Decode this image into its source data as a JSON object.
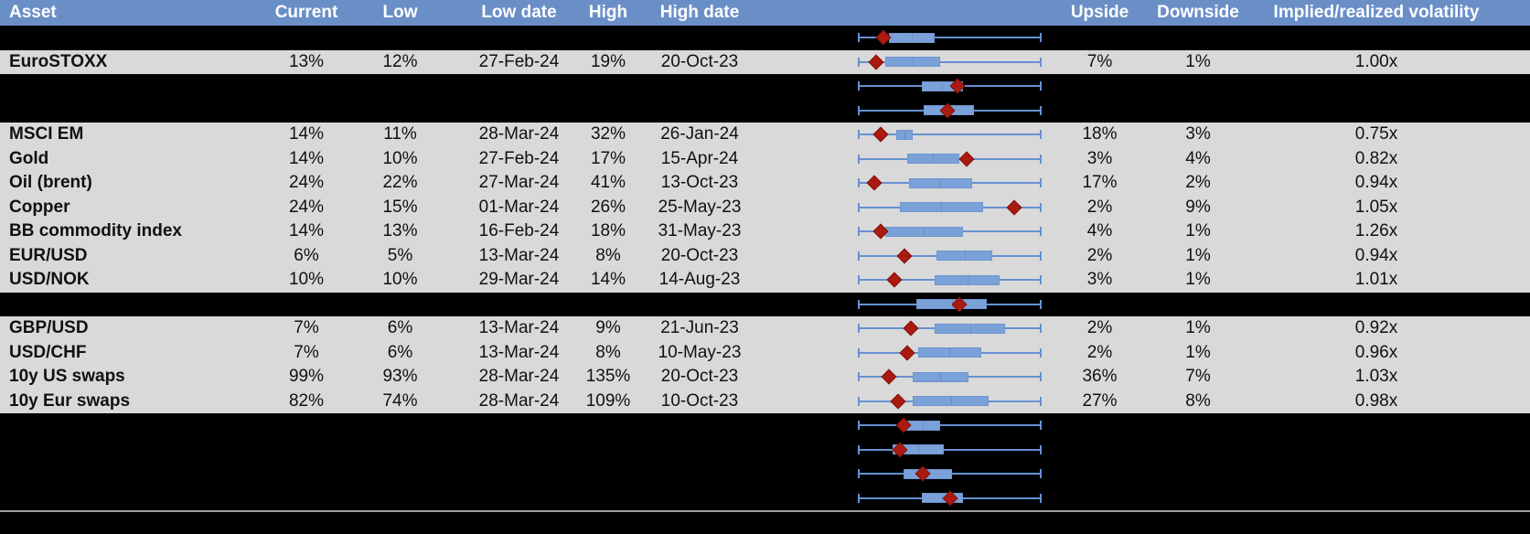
{
  "header": {
    "asset": "Asset",
    "current": "Current",
    "low": "Low",
    "low_date": "Low date",
    "high": "High",
    "high_date": "High date",
    "upside": "Upside",
    "downside": "Downside",
    "implied": "Implied/realized volatility"
  },
  "rows": [
    {
      "hidden": true
    },
    {
      "hidden": false,
      "asset": "EuroSTOXX",
      "current": "13%",
      "low": "12%",
      "low_date": "27-Feb-24",
      "high": "19%",
      "high_date": "20-Oct-23",
      "upside": "7%",
      "downside": "1%",
      "ratio": "1.00x"
    },
    {
      "hidden": true
    },
    {
      "hidden": true
    },
    {
      "hidden": false,
      "asset": "MSCI EM",
      "current": "14%",
      "low": "11%",
      "low_date": "28-Mar-24",
      "high": "32%",
      "high_date": "26-Jan-24",
      "upside": "18%",
      "downside": "3%",
      "ratio": "0.75x"
    },
    {
      "hidden": false,
      "asset": "Gold",
      "current": "14%",
      "low": "10%",
      "low_date": "27-Feb-24",
      "high": "17%",
      "high_date": "15-Apr-24",
      "upside": "3%",
      "downside": "4%",
      "ratio": "0.82x"
    },
    {
      "hidden": false,
      "asset": "Oil (brent)",
      "current": "24%",
      "low": "22%",
      "low_date": "27-Mar-24",
      "high": "41%",
      "high_date": "13-Oct-23",
      "upside": "17%",
      "downside": "2%",
      "ratio": "0.94x"
    },
    {
      "hidden": false,
      "asset": "Copper",
      "current": "24%",
      "low": "15%",
      "low_date": "01-Mar-24",
      "high": "26%",
      "high_date": "25-May-23",
      "upside": "2%",
      "downside": "9%",
      "ratio": "1.05x"
    },
    {
      "hidden": false,
      "asset": "BB commodity index",
      "current": "14%",
      "low": "13%",
      "low_date": "16-Feb-24",
      "high": "18%",
      "high_date": "31-May-23",
      "upside": "4%",
      "downside": "1%",
      "ratio": "1.26x"
    },
    {
      "hidden": false,
      "asset": "EUR/USD",
      "current": "6%",
      "low": "5%",
      "low_date": "13-Mar-24",
      "high": "8%",
      "high_date": "20-Oct-23",
      "upside": "2%",
      "downside": "1%",
      "ratio": "0.94x"
    },
    {
      "hidden": false,
      "asset": "USD/NOK",
      "current": "10%",
      "low": "10%",
      "low_date": "29-Mar-24",
      "high": "14%",
      "high_date": "14-Aug-23",
      "upside": "3%",
      "downside": "1%",
      "ratio": "1.01x"
    },
    {
      "hidden": true
    },
    {
      "hidden": false,
      "asset": "GBP/USD",
      "current": "7%",
      "low": "6%",
      "low_date": "13-Mar-24",
      "high": "9%",
      "high_date": "21-Jun-23",
      "upside": "2%",
      "downside": "1%",
      "ratio": "0.92x"
    },
    {
      "hidden": false,
      "asset": "USD/CHF",
      "current": "7%",
      "low": "6%",
      "low_date": "13-Mar-24",
      "high": "8%",
      "high_date": "10-May-23",
      "upside": "2%",
      "downside": "1%",
      "ratio": "0.96x"
    },
    {
      "hidden": false,
      "asset": "10y US swaps",
      "current": "99%",
      "low": "93%",
      "low_date": "28-Mar-24",
      "high": "135%",
      "high_date": "20-Oct-23",
      "upside": "36%",
      "downside": "7%",
      "ratio": "1.03x"
    },
    {
      "hidden": false,
      "asset": "10y Eur swaps",
      "current": "82%",
      "low": "74%",
      "low_date": "28-Mar-24",
      "high": "109%",
      "high_date": "10-Oct-23",
      "upside": "27%",
      "downside": "8%",
      "ratio": "0.98x"
    },
    {
      "hidden": true
    },
    {
      "hidden": true
    },
    {
      "hidden": true
    },
    {
      "hidden": true
    }
  ],
  "chart_data": {
    "type": "boxplot",
    "title": "1y implied volatility range per asset",
    "note": "Horizontal box-and-whisker per row: whiskers span each asset's 1y low-to-high implied vol range (normalized 0-1), blue box = middle range, red diamond = current level. Hidden (black) rows show a plot but no labels.",
    "x_scale": "normalized 0 = 1y low, 1 = 1y high",
    "legend": "off",
    "grid": "off",
    "rows": [
      {
        "label": "(hidden row)",
        "whisker_low": 0,
        "box_left": 0.17,
        "box_right": 0.42,
        "whisker_high": 1,
        "marker": 0.14
      },
      {
        "label": "EuroSTOXX",
        "whisker_low": 0,
        "box_left": 0.15,
        "box_right": 0.45,
        "whisker_high": 1,
        "marker": 0.1
      },
      {
        "label": "(hidden row)",
        "whisker_low": 0,
        "box_left": 0.35,
        "box_right": 0.57,
        "whisker_high": 1,
        "marker": 0.54
      },
      {
        "label": "(hidden row)",
        "whisker_low": 0,
        "box_left": 0.36,
        "box_right": 0.63,
        "whisker_high": 1,
        "marker": 0.49
      },
      {
        "label": "MSCI EM",
        "whisker_low": 0,
        "box_left": 0.21,
        "box_right": 0.3,
        "whisker_high": 1,
        "marker": 0.125
      },
      {
        "label": "Gold",
        "whisker_low": 0,
        "box_left": 0.27,
        "box_right": 0.55,
        "whisker_high": 1,
        "marker": 0.59
      },
      {
        "label": "Oil (brent)",
        "whisker_low": 0,
        "box_left": 0.28,
        "box_right": 0.62,
        "whisker_high": 1,
        "marker": 0.09
      },
      {
        "label": "Copper",
        "whisker_low": 0,
        "box_left": 0.23,
        "box_right": 0.68,
        "whisker_high": 1,
        "marker": 0.85
      },
      {
        "label": "BB commodity index",
        "whisker_low": 0,
        "box_left": 0.15,
        "box_right": 0.57,
        "whisker_high": 1,
        "marker": 0.125
      },
      {
        "label": "EUR/USD",
        "whisker_low": 0,
        "box_left": 0.43,
        "box_right": 0.73,
        "whisker_high": 1,
        "marker": 0.255
      },
      {
        "label": "USD/NOK",
        "whisker_low": 0,
        "box_left": 0.42,
        "box_right": 0.77,
        "whisker_high": 1,
        "marker": 0.2
      },
      {
        "label": "(hidden row)",
        "whisker_low": 0,
        "box_left": 0.32,
        "box_right": 0.7,
        "whisker_high": 1,
        "marker": 0.55
      },
      {
        "label": "GBP/USD",
        "whisker_low": 0,
        "box_left": 0.42,
        "box_right": 0.8,
        "whisker_high": 1,
        "marker": 0.29
      },
      {
        "label": "USD/CHF",
        "whisker_low": 0,
        "box_left": 0.33,
        "box_right": 0.67,
        "whisker_high": 1,
        "marker": 0.27
      },
      {
        "label": "10y US swaps",
        "whisker_low": 0,
        "box_left": 0.3,
        "box_right": 0.6,
        "whisker_high": 1,
        "marker": 0.17
      },
      {
        "label": "10y Eur swaps",
        "whisker_low": 0,
        "box_left": 0.3,
        "box_right": 0.71,
        "whisker_high": 1,
        "marker": 0.22
      },
      {
        "label": "(hidden row)",
        "whisker_low": 0,
        "box_left": 0.255,
        "box_right": 0.45,
        "whisker_high": 1,
        "marker": 0.25
      },
      {
        "label": "(hidden row)",
        "whisker_low": 0,
        "box_left": 0.19,
        "box_right": 0.47,
        "whisker_high": 1,
        "marker": 0.23
      },
      {
        "label": "(hidden row)",
        "whisker_low": 0,
        "box_left": 0.25,
        "box_right": 0.51,
        "whisker_high": 1,
        "marker": 0.355
      },
      {
        "label": "(hidden row)",
        "whisker_low": 0,
        "box_left": 0.35,
        "box_right": 0.57,
        "whisker_high": 1,
        "marker": 0.5
      }
    ]
  },
  "colors": {
    "header_bg": "#6a8fc7",
    "header_text": "#ffffff",
    "row_bg": "#d9d9d9",
    "hidden_row_bg": "#000000",
    "box_fill": "#7ba1d9",
    "whisker": "#6691d2",
    "diamond": "#ab1a10",
    "separator_line": "#9e9e9e"
  }
}
